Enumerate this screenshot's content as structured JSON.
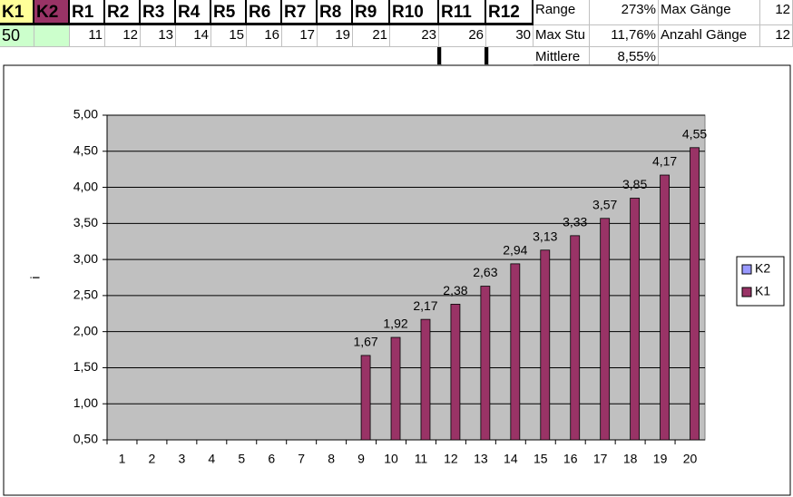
{
  "sheet": {
    "header": [
      "K1",
      "K2",
      "R1",
      "R2",
      "R3",
      "R4",
      "R5",
      "R6",
      "R7",
      "R8",
      "R9",
      "R10",
      "R11",
      "R12"
    ],
    "input": "50",
    "ratios": [
      "11",
      "12",
      "13",
      "14",
      "15",
      "16",
      "17",
      "19",
      "21",
      "23",
      "26",
      "30"
    ],
    "stats": [
      [
        "Range",
        "273%",
        "Max Gänge",
        "12"
      ],
      [
        "Max Stu",
        "11,76%",
        "Anzahl Gänge",
        "12"
      ],
      [
        "Mittlere",
        "8,55%"
      ]
    ]
  },
  "chart_data": {
    "type": "bar",
    "y_label": "i",
    "categories": [
      "1",
      "2",
      "3",
      "4",
      "5",
      "6",
      "7",
      "8",
      "9",
      "10",
      "11",
      "12",
      "13",
      "14",
      "15",
      "16",
      "17",
      "18",
      "19",
      "20"
    ],
    "series": [
      {
        "name": "K2",
        "color": "#9999ff",
        "values": [
          null,
          null,
          null,
          null,
          null,
          null,
          null,
          null,
          null,
          null,
          null,
          null,
          null,
          null,
          null,
          null,
          null,
          null,
          null,
          null
        ]
      },
      {
        "name": "K1",
        "color": "#993366",
        "values": [
          null,
          null,
          null,
          null,
          null,
          null,
          null,
          null,
          1.67,
          1.92,
          2.17,
          2.38,
          2.63,
          2.94,
          3.13,
          3.33,
          3.57,
          3.85,
          4.17,
          4.55
        ],
        "value_labels": [
          null,
          null,
          null,
          null,
          null,
          null,
          null,
          null,
          "1,67",
          "1,92",
          "2,17",
          "2,38",
          "2,63",
          "2,94",
          "3,13",
          "3,33",
          "3,57",
          "3,85",
          "4,17",
          "4,55"
        ]
      }
    ],
    "ylim": [
      0.5,
      5.0
    ],
    "yticks": [
      {
        "value": 0.5,
        "label": "0,50"
      },
      {
        "value": 1.0,
        "label": "1,00"
      },
      {
        "value": 1.5,
        "label": "1,50"
      },
      {
        "value": 2.0,
        "label": "2,00"
      },
      {
        "value": 2.5,
        "label": "2,50"
      },
      {
        "value": 3.0,
        "label": "3,00"
      },
      {
        "value": 3.5,
        "label": "3,50"
      },
      {
        "value": 4.0,
        "label": "4,00"
      },
      {
        "value": 4.5,
        "label": "4,50"
      },
      {
        "value": 5.0,
        "label": "5,00"
      }
    ],
    "grid": true,
    "legend": "right",
    "background": "#c0c0c0"
  }
}
